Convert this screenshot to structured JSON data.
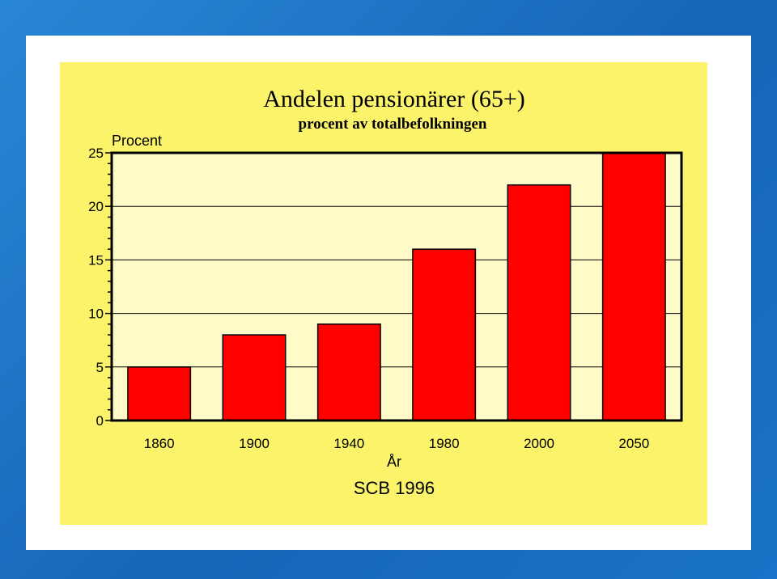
{
  "colors": {
    "frame": "#1a6fc4",
    "panel": "#fbf46b",
    "plot_area": "#fefbc8",
    "bar": "#ff0000",
    "axis": "#000000"
  },
  "chart_data": {
    "type": "bar",
    "title": "Andelen pensionärer (65+)",
    "subtitle": "procent av totalbefolkningen",
    "ylabel": "Procent",
    "xlabel": "År",
    "source": "SCB 1996",
    "categories": [
      "1860",
      "1900",
      "1940",
      "1980",
      "2000",
      "2050"
    ],
    "values": [
      5,
      8,
      9,
      16,
      22,
      25
    ],
    "ylim": [
      0,
      25
    ],
    "yticks": [
      0,
      5,
      10,
      15,
      20,
      25
    ],
    "grid": true
  }
}
